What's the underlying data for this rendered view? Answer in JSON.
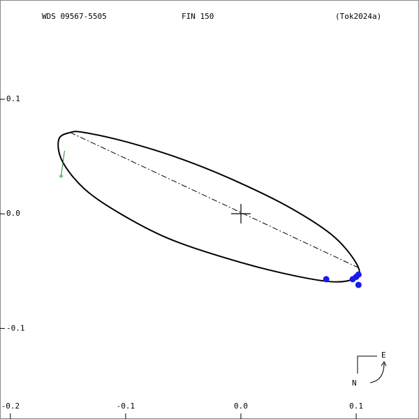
{
  "chart_data": {
    "type": "orbit",
    "title": "WDS 09567-5505",
    "subtitle": "FIN 150",
    "reference": "(Tok2024a)",
    "xlim": [
      -0.209,
      0.1545
    ],
    "ylim": [
      -0.179,
      0.1866
    ],
    "xticks": [
      -0.2,
      -0.1,
      {
        "value": 0,
        "label": "0.0"
      },
      0.1
    ],
    "yticks": [
      0.1,
      {
        "value": 0,
        "label": "0.0"
      },
      -0.1
    ],
    "orbit": {
      "color": "#000000",
      "x": [
        -0.158,
        -0.148,
        -0.136,
        -0.1,
        -0.052,
        -0.003,
        0.045,
        0.082,
        0.102,
        0.097,
        0.076,
        0.033,
        -0.015,
        -0.064,
        -0.106,
        -0.136,
        -0.155
      ],
      "y": [
        0.065,
        0.071,
        0.071,
        0.063,
        0.048,
        0.028,
        0.004,
        -0.021,
        -0.047,
        -0.057,
        -0.059,
        -0.051,
        -0.038,
        -0.021,
        0.001,
        0.022,
        0.046
      ]
    },
    "line_of_nodes": {
      "x": [
        -0.148,
        0.102
      ],
      "y": [
        0.071,
        -0.047
      ]
    },
    "residual": {
      "color": "#228822",
      "x": [
        -0.153,
        -0.156
      ],
      "y": [
        0.055,
        0.033
      ]
    },
    "observations": {
      "color": "#1a1aee",
      "x": [
        0.074,
        0.097,
        0.1,
        0.102,
        0.102
      ],
      "y": [
        -0.057,
        -0.057,
        -0.055,
        -0.053,
        -0.062
      ]
    },
    "compass": {
      "east": "E",
      "north": "N"
    }
  }
}
